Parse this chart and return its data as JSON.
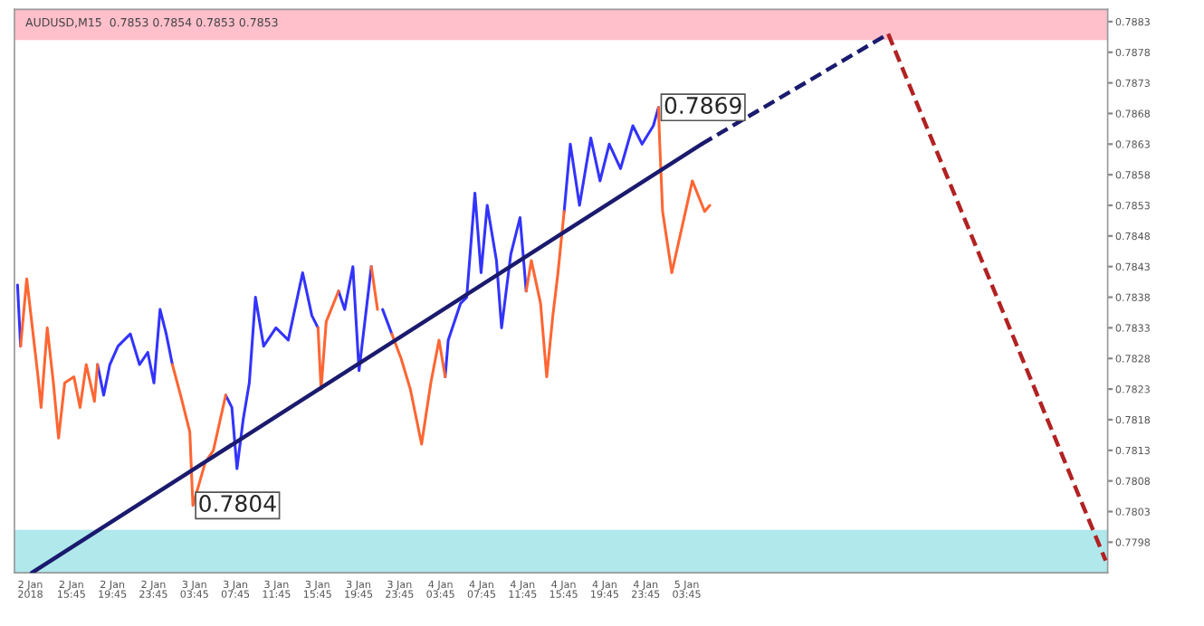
{
  "chart_data": {
    "type": "line",
    "title": "AUDUSD,M15  0.7853 0.7854 0.7853 0.7853",
    "xlim": [
      "2018-01-02T10:12",
      "2018-01-06T20:48"
    ],
    "xticks": [
      {
        "value": "2018-01-02T11:45",
        "label": "2 Jan 2018"
      },
      {
        "value": "2018-01-02T15:45",
        "label": "2 Jan 15:45"
      },
      {
        "value": "2018-01-02T19:45",
        "label": "2 Jan 19:45"
      },
      {
        "value": "2018-01-02T23:45",
        "label": "2 Jan 23:45"
      },
      {
        "value": "2018-01-03T03:45",
        "label": "3 Jan 03:45"
      },
      {
        "value": "2018-01-03T07:45",
        "label": "3 Jan 07:45"
      },
      {
        "value": "2018-01-03T11:45",
        "label": "3 Jan 11:45"
      },
      {
        "value": "2018-01-03T15:45",
        "label": "3 Jan 15:45"
      },
      {
        "value": "2018-01-03T19:45",
        "label": "3 Jan 19:45"
      },
      {
        "value": "2018-01-03T23:45",
        "label": "3 Jan 23:45"
      },
      {
        "value": "2018-01-04T03:45",
        "label": "4 Jan 03:45"
      },
      {
        "value": "2018-01-04T07:45",
        "label": "4 Jan 07:45"
      },
      {
        "value": "2018-01-04T11:45",
        "label": "4 Jan 11:45"
      },
      {
        "value": "2018-01-04T15:45",
        "label": "4 Jan 15:45"
      },
      {
        "value": "2018-01-04T19:45",
        "label": "4 Jan 19:45"
      },
      {
        "value": "2018-01-04T23:45",
        "label": "4 Jan 23:45"
      },
      {
        "value": "2018-01-05T03:45",
        "label": "5 Jan 03:45"
      }
    ],
    "ylim": [
      0.7793,
      0.7885
    ],
    "yticks": [
      0.7798,
      0.7803,
      0.7808,
      0.7813,
      0.7818,
      0.7823,
      0.7828,
      0.7833,
      0.7838,
      0.7843,
      0.7848,
      0.7853,
      0.7858,
      0.7863,
      0.7868,
      0.7873,
      0.7878,
      0.7883
    ],
    "grid": false,
    "legend": false,
    "marker": "none",
    "series": [
      {
        "color": "#3333ff",
        "x": [
          "2018-01-02T10:30",
          "2018-01-02T10:48",
          "2018-01-02T11:24",
          "2018-01-02T18:18",
          "2018-01-02T18:54",
          "2018-01-02T19:30",
          "2018-01-02T20:18",
          "2018-01-02T21:30",
          "2018-01-02T22:24",
          "2018-01-02T23:12",
          "2018-01-02T23:48",
          "2018-01-03T00:24",
          "2018-01-03T01:00",
          "2018-01-03T01:36",
          "2018-01-03T02:24",
          "2018-01-03T06:48",
          "2018-01-03T07:24",
          "2018-01-03T07:54",
          "2018-01-03T08:30",
          "2018-01-03T09:06",
          "2018-01-03T09:42",
          "2018-01-03T10:30",
          "2018-01-03T11:42",
          "2018-01-03T12:54",
          "2018-01-03T14:18",
          "2018-01-03T15:12",
          "2018-01-03T15:48",
          "2018-01-03T16:06",
          "2018-01-03T17:48",
          "2018-01-03T18:24",
          "2018-01-03T19:12",
          "2018-01-03T19:48",
          "2018-01-03T21:00",
          "2018-01-03T21:36",
          "2018-01-03T22:06",
          "2018-01-03T23:00",
          "2018-01-03T23:54",
          "2018-01-04T04:12",
          "2018-01-04T04:30",
          "2018-01-04T05:42",
          "2018-01-04T06:18",
          "2018-01-04T07:06",
          "2018-01-04T07:42",
          "2018-01-04T08:18",
          "2018-01-04T09:12",
          "2018-01-04T09:42",
          "2018-01-04T10:36",
          "2018-01-04T11:30",
          "2018-01-04T12:06",
          "2018-01-04T12:36",
          "2018-01-04T15:48",
          "2018-01-04T16:24",
          "2018-01-04T17:18",
          "2018-01-04T18:24",
          "2018-01-04T19:18",
          "2018-01-04T20:12",
          "2018-01-04T21:18",
          "2018-01-04T22:30",
          "2018-01-04T23:24",
          "2018-01-05T00:30",
          "2018-01-05T01:00"
        ],
        "values": [
          0.784,
          0.783,
          null,
          0.7827,
          0.7822,
          0.7827,
          0.783,
          0.7832,
          0.7827,
          0.7829,
          0.7824,
          0.7836,
          0.7832,
          0.7827,
          null,
          0.7822,
          0.782,
          0.781,
          0.7818,
          0.7824,
          0.7838,
          0.783,
          0.7833,
          0.7831,
          0.7842,
          0.7835,
          0.7833,
          null,
          0.7839,
          0.7836,
          0.7843,
          0.7826,
          0.7843,
          null,
          0.7836,
          0.7832,
          null,
          0.7825,
          0.7831,
          0.7837,
          0.7838,
          0.7855,
          0.7842,
          0.7853,
          0.7844,
          0.7833,
          0.7845,
          0.7851,
          0.7839,
          null,
          0.7852,
          0.7863,
          0.7853,
          0.7864,
          0.7857,
          0.7863,
          0.7859,
          0.7866,
          0.7863,
          0.7866,
          0.7869
        ]
      },
      {
        "color": "#ff6633",
        "x": [
          "2018-01-02T10:48",
          "2018-01-02T11:24",
          "2018-01-02T12:30",
          "2018-01-02T12:48",
          "2018-01-02T13:24",
          "2018-01-02T14:00",
          "2018-01-02T14:30",
          "2018-01-02T15:06",
          "2018-01-02T16:00",
          "2018-01-02T16:36",
          "2018-01-02T17:12",
          "2018-01-02T18:00",
          "2018-01-02T18:18",
          "2018-01-02T18:54",
          "2018-01-03T01:36",
          "2018-01-03T02:24",
          "2018-01-03T03:18",
          "2018-01-03T03:36",
          "2018-01-03T04:48",
          "2018-01-03T05:36",
          "2018-01-03T06:48",
          "2018-01-03T07:24",
          "2018-01-03T15:48",
          "2018-01-03T16:06",
          "2018-01-03T16:36",
          "2018-01-03T17:48",
          "2018-01-03T18:24",
          "2018-01-03T21:00",
          "2018-01-03T21:36",
          "2018-01-03T22:06",
          "2018-01-03T23:00",
          "2018-01-03T23:54",
          "2018-01-04T00:48",
          "2018-01-04T01:54",
          "2018-01-04T02:48",
          "2018-01-04T03:36",
          "2018-01-04T04:12",
          "2018-01-04T04:30",
          "2018-01-04T12:06",
          "2018-01-04T12:36",
          "2018-01-04T13:30",
          "2018-01-04T14:06",
          "2018-01-04T14:42",
          "2018-01-04T15:12",
          "2018-01-04T15:48",
          "2018-01-04T16:24",
          "2018-01-05T01:00",
          "2018-01-05T01:06",
          "2018-01-05T01:24",
          "2018-01-05T02:18",
          "2018-01-05T03:06",
          "2018-01-05T04:18",
          "2018-01-05T05:30",
          "2018-01-05T06:00"
        ],
        "values": [
          0.783,
          0.7841,
          0.7825,
          0.782,
          0.7833,
          0.7824,
          0.7815,
          0.7824,
          0.7825,
          0.782,
          0.7827,
          0.7821,
          0.7827,
          null,
          0.7827,
          0.7822,
          0.7816,
          0.7804,
          0.7811,
          0.7813,
          0.7822,
          null,
          0.7833,
          0.7823,
          0.7834,
          0.7839,
          null,
          0.7843,
          0.7836,
          null,
          0.7832,
          0.7828,
          0.7823,
          0.7814,
          0.7824,
          0.7831,
          0.7825,
          null,
          0.7839,
          0.7844,
          0.7837,
          0.7825,
          0.7835,
          0.7842,
          0.7852,
          null,
          0.7869,
          0.7864,
          0.7852,
          0.7842,
          0.7848,
          0.7857,
          0.7852,
          0.7853
        ]
      },
      {
        "color": "#1a1a6e",
        "x": [
          "2018-01-02T11:54",
          "2018-01-05T05:12"
        ],
        "values": [
          0.7793,
          0.7863
        ],
        "line_style": "solid"
      },
      {
        "color": "#1a1a6e",
        "x": [
          "2018-01-05T05:12",
          "2018-01-05T23:24"
        ],
        "values": [
          0.7863,
          0.7881
        ],
        "line_style": "dashed"
      },
      {
        "color": "#b22222",
        "x": [
          "2018-01-05T23:24",
          "2018-01-06T20:36"
        ],
        "values": [
          0.7881,
          0.7795
        ],
        "line_style": "dashed"
      }
    ],
    "bands": [
      {
        "axis": "y",
        "from": 0.788,
        "to": 0.7885,
        "color": "#ffc0cb"
      },
      {
        "axis": "y",
        "from": 0.7793,
        "to": 0.78,
        "color": "#b0e8ec"
      }
    ],
    "annotations": [
      {
        "text": "0.7869",
        "x": "2018-01-05T01:00",
        "y": 0.7869
      },
      {
        "text": "0.7804",
        "x": "2018-01-03T03:36",
        "y": 0.7804
      }
    ]
  }
}
